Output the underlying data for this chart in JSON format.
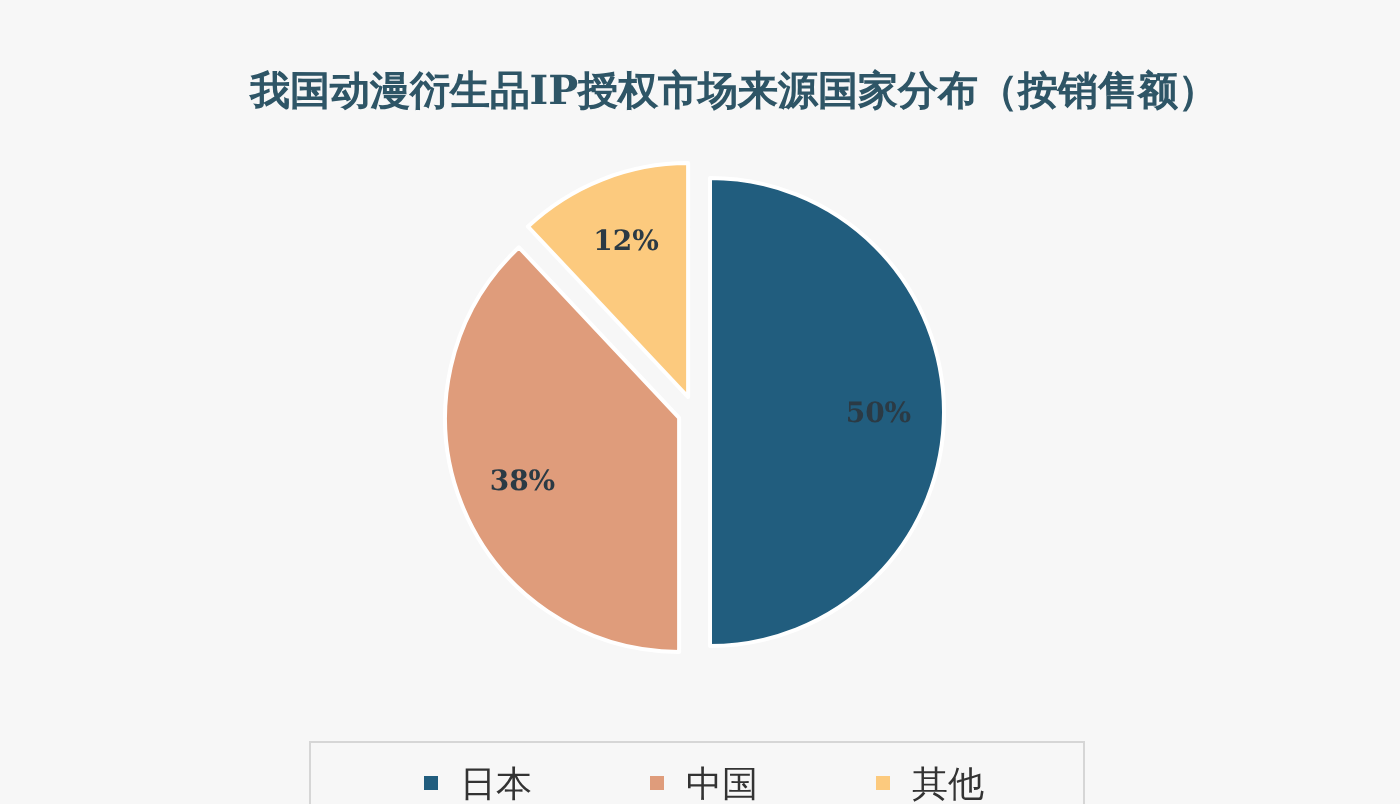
{
  "chart_data": {
    "type": "pie",
    "title": "我国动漫衍生品IP授权市场来源国家分布（按销售额）",
    "categories": [
      "日本",
      "中国",
      "其他"
    ],
    "values": [
      50,
      38,
      12
    ],
    "colors": [
      "#215d7e",
      "#df9c7b",
      "#fcca7e"
    ],
    "value_labels": [
      "50%",
      "38%",
      "12%"
    ],
    "legend": "bottom"
  }
}
